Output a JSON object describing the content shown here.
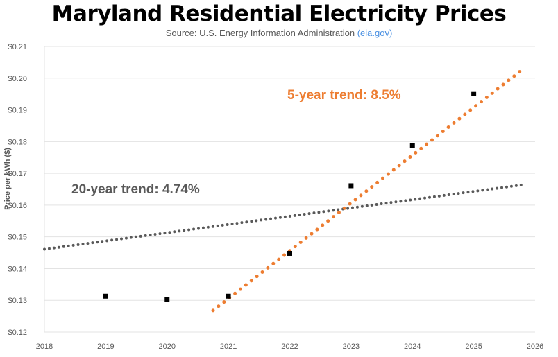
{
  "chart_data": {
    "type": "scatter",
    "title": "Maryland Residential Electricity Prices",
    "subtitle": "Source: U.S. Energy Information Administration",
    "subtitle_link": "(eia.gov)",
    "xlabel": "",
    "ylabel": "Price per kWh ($)",
    "xlim": [
      2018,
      2026
    ],
    "ylim": [
      0.12,
      0.21
    ],
    "x_ticks": [
      "2018",
      "2019",
      "2020",
      "2021",
      "2022",
      "2023",
      "2024",
      "2025",
      "2026"
    ],
    "y_ticks": [
      "$0.12",
      "$0.13",
      "$0.14",
      "$0.15",
      "$0.16",
      "$0.17",
      "$0.18",
      "$0.19",
      "$0.20",
      "$0.21"
    ],
    "grid": "horizontal",
    "points": {
      "x": [
        2019,
        2020,
        2021,
        2022,
        2023,
        2024,
        2025
      ],
      "y": [
        0.1313,
        0.1302,
        0.1313,
        0.1448,
        0.1661,
        0.1787,
        0.1951
      ],
      "color": "#000000"
    },
    "trendlines": [
      {
        "label": "20-year trend: 4.74%",
        "color": "#595959",
        "x": [
          2018,
          2025.8
        ],
        "y": [
          0.1461,
          0.1664
        ]
      },
      {
        "label": "5-year trend: 8.5%",
        "color": "#ED7D31",
        "x": [
          2020.75,
          2025.8
        ],
        "y": [
          0.1268,
          0.2028
        ]
      }
    ]
  }
}
